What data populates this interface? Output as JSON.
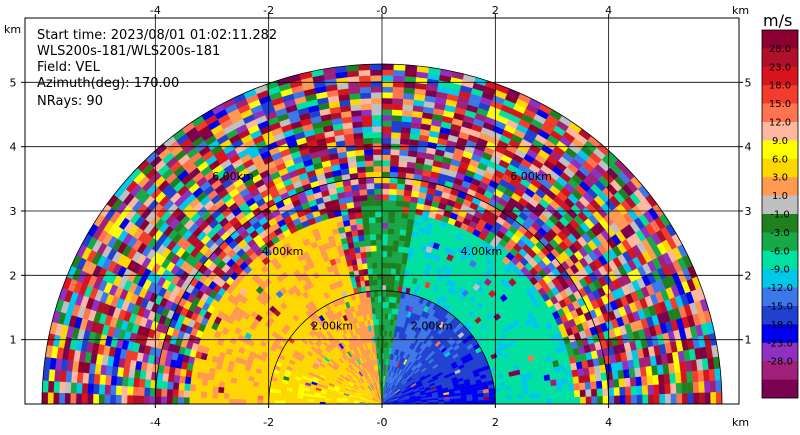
{
  "chart_data": {
    "type": "heatmap",
    "plot_kind": "radar PPI sector (velocity field)",
    "info_lines": [
      "Start time: 2023/08/01 01:02:11.282",
      "WLS200s-181/WLS200s-181",
      "Field: VEL",
      "Azimuth(deg): 170.00",
      "NRays: 90"
    ],
    "x_unit": "km",
    "y_unit": "km",
    "xlim": [
      -6.3,
      6.3
    ],
    "ylim": [
      0,
      6.0
    ],
    "x_ticks": [
      "-4",
      "-2",
      "-0",
      "2",
      "4"
    ],
    "y_ticks": [
      "1",
      "2",
      "3",
      "4",
      "5"
    ],
    "range_rings": [
      {
        "label": "2.00km",
        "radius_km": 2.0
      },
      {
        "label": "4.00km",
        "radius_km": 4.0
      },
      {
        "label": "6.00km",
        "radius_km": 6.0
      }
    ],
    "azimuth_span_deg": [
      -90,
      90
    ],
    "grid": true,
    "colorbar": {
      "unit": "m/s",
      "tick_labels": [
        "28.0",
        "23.0",
        "18.0",
        "15.0",
        "12.0",
        "9.0",
        "6.0",
        "3.0",
        "1.0",
        "-1.0",
        "-3.0",
        "-6.0",
        "-9.0",
        "-12.0",
        "-15.0",
        "-18.0",
        "-23.0",
        "-28.0"
      ],
      "colors": [
        "#8b0030",
        "#b0102a",
        "#d8141e",
        "#f23c2c",
        "#ff7450",
        "#ffb8a0",
        "#ffff00",
        "#ffd700",
        "#ff9a50",
        "#c0c0c0",
        "#208020",
        "#18a848",
        "#00e0a0",
        "#00c8e8",
        "#3c78e8",
        "#2040d0",
        "#0000f0",
        "#9030c0",
        "#a0207a",
        "#7a0050"
      ]
    },
    "regions": [
      {
        "name": "near-left",
        "az_deg": [
          -90,
          0
        ],
        "range_km": [
          0,
          2.0
        ],
        "value_mps": 4.5
      },
      {
        "name": "mid-left",
        "az_deg": [
          -90,
          -15
        ],
        "range_km": [
          2.0,
          3.4
        ],
        "value_mps": 7.0
      },
      {
        "name": "near-right",
        "az_deg": [
          2,
          90
        ],
        "range_km": [
          0,
          2.0
        ],
        "value_mps": -10.0
      },
      {
        "name": "mid-right",
        "az_deg": [
          5,
          90
        ],
        "range_km": [
          2.0,
          3.4
        ],
        "value_mps": -5.0
      },
      {
        "name": "center",
        "az_deg": [
          -6,
          10
        ],
        "range_km": [
          0,
          3.6
        ],
        "value_mps": -1.5
      },
      {
        "name": "outer-noise",
        "az_deg": [
          -90,
          90
        ],
        "range_km": [
          3.4,
          5.9
        ],
        "value_mps": null
      }
    ]
  }
}
